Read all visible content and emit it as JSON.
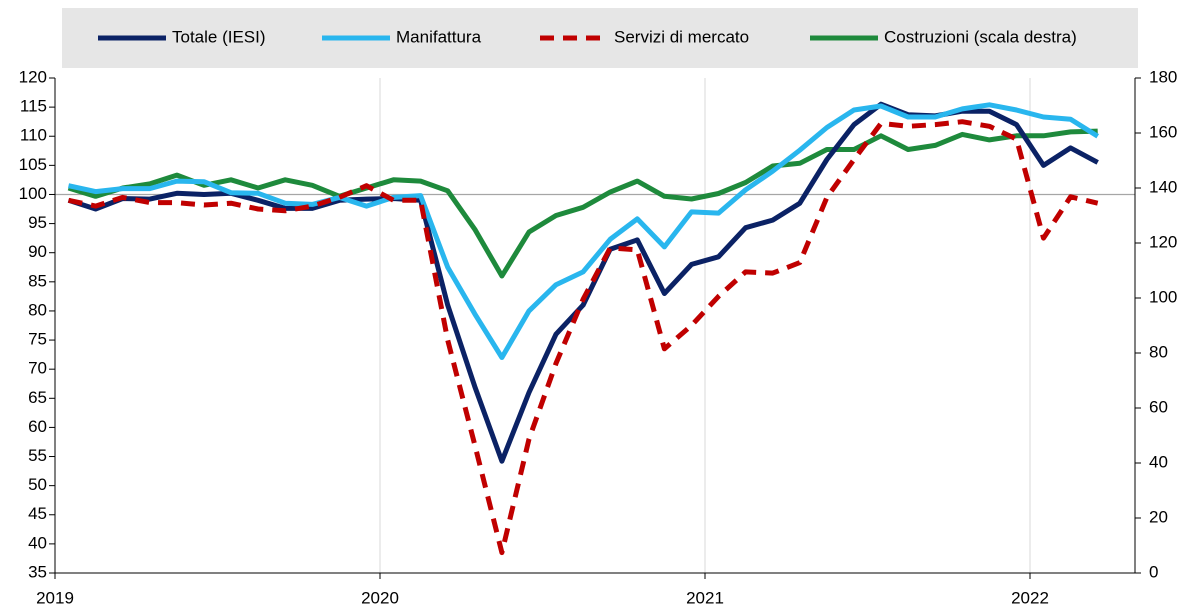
{
  "chart_data": {
    "type": "line",
    "categories": [
      "2019",
      null,
      null,
      null,
      null,
      null,
      null,
      null,
      null,
      null,
      null,
      null,
      "2020",
      null,
      null,
      null,
      null,
      null,
      null,
      null,
      null,
      null,
      null,
      null,
      "2021",
      null,
      null,
      null,
      null,
      null,
      null,
      null,
      null,
      null,
      null,
      null,
      "2022",
      null,
      null
    ],
    "series": [
      {
        "name": "Totale (IESI)",
        "color": "#0b2265",
        "style": "solid",
        "values": [
          99,
          97.5,
          99.3,
          99.2,
          100.2,
          100,
          100.2,
          99,
          97.6,
          97.6,
          99,
          99.2,
          99.3,
          99,
          81,
          67,
          54.2,
          66,
          76,
          81,
          90.6,
          92.2,
          83,
          88,
          89.3,
          94.3,
          95.6,
          98.5,
          106,
          112,
          115.5,
          113.7,
          113.5,
          114.3,
          114.3,
          112,
          105,
          108,
          105.5
        ]
      },
      {
        "name": "Manifattura",
        "color": "#29b6ee",
        "style": "solid",
        "values": [
          101.5,
          100.5,
          101,
          101,
          102.3,
          102.2,
          100.3,
          100.2,
          98.5,
          98.3,
          99.5,
          98,
          99.5,
          99.8,
          87.5,
          79.5,
          72,
          80,
          84.5,
          86.7,
          92.3,
          95.8,
          91,
          97,
          96.8,
          100.8,
          104,
          107.6,
          111.5,
          114.5,
          115.2,
          113.3,
          113.3,
          114.7,
          115.4,
          114.5,
          113.3,
          112.9,
          110
        ]
      },
      {
        "name": "Servizi di mercato",
        "color": "#c00000",
        "style": "dashed",
        "values": [
          99,
          98,
          99.5,
          98.6,
          98.6,
          98.2,
          98.5,
          97.5,
          97.2,
          98,
          99.5,
          101.5,
          99,
          99,
          75,
          57,
          38.5,
          58,
          71,
          82,
          90.8,
          90.5,
          73.5,
          77.5,
          82.5,
          86.7,
          86.5,
          88.3,
          99.5,
          106,
          112.2,
          111.7,
          112,
          112.5,
          111.7,
          109.5,
          92.5,
          99.6,
          98.5
        ]
      },
      {
        "name": "Costruzioni (scala destra)",
        "color": "#1e8a3c",
        "style": "solid",
        "axis": "y2",
        "values": [
          140,
          137,
          140,
          141.5,
          144.7,
          141,
          143,
          140,
          143,
          141,
          137,
          140,
          143,
          142.5,
          139,
          125,
          108,
          124,
          130,
          133,
          138.5,
          142.5,
          137,
          136,
          138,
          142,
          148,
          149,
          154,
          154,
          159,
          154,
          155.5,
          159.5,
          157.5,
          159,
          159,
          160.4,
          160.7
        ]
      }
    ],
    "ylim": [
      35,
      120
    ],
    "yticks": [
      35,
      40,
      45,
      50,
      55,
      60,
      65,
      70,
      75,
      80,
      85,
      90,
      95,
      100,
      105,
      110,
      115,
      120
    ],
    "y2lim": [
      0,
      180
    ],
    "y2ticks": [
      0,
      20,
      40,
      60,
      80,
      100,
      120,
      140,
      160,
      180
    ],
    "reference_line": 100,
    "grid": true,
    "legend": "top"
  }
}
